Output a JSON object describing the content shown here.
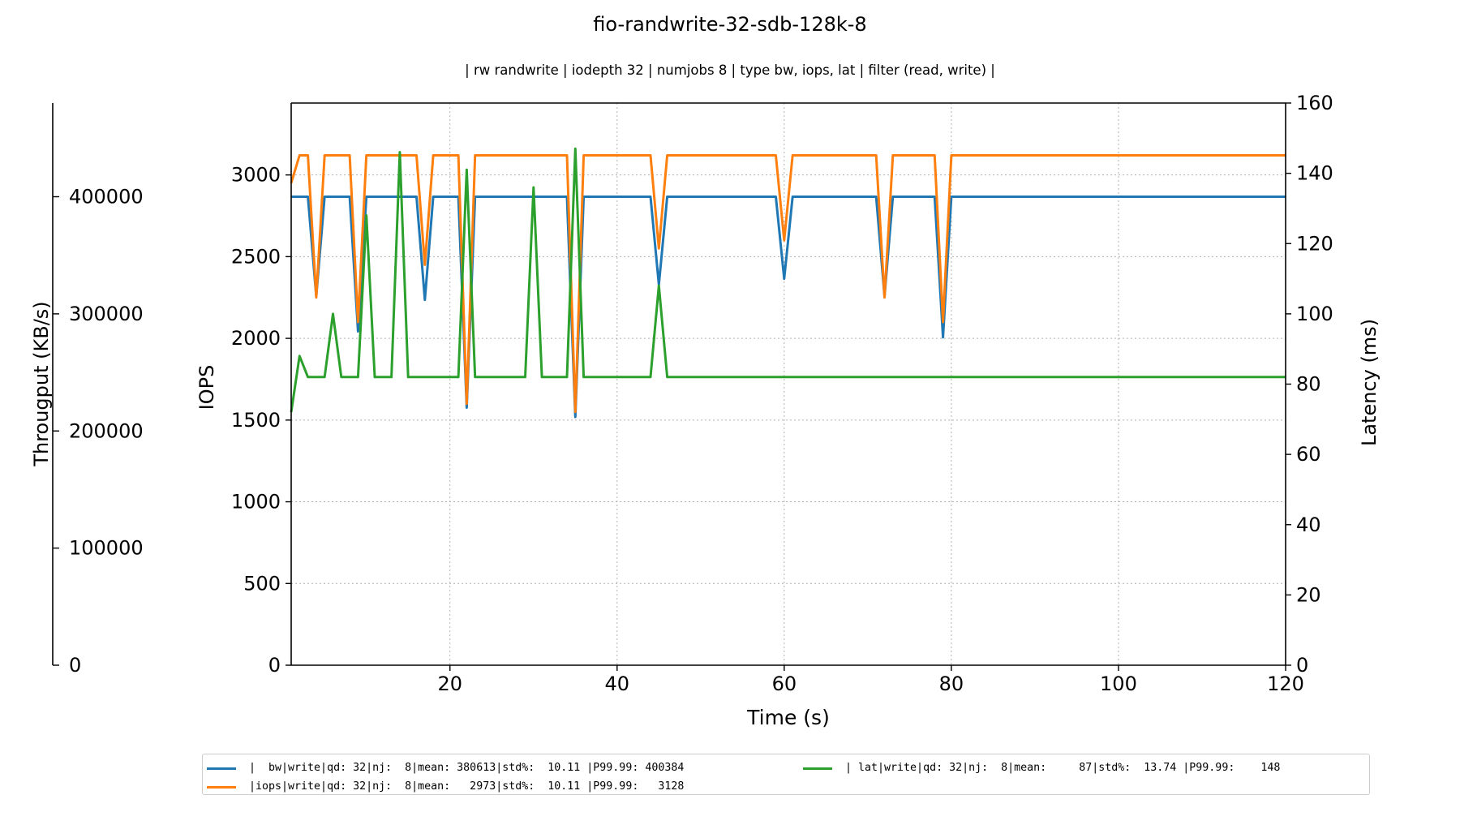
{
  "chart_data": {
    "type": "line",
    "title": "fio-randwrite-32-sdb-128k-8",
    "subtitle": "| rw randwrite | iodepth 32 | numjobs 8 | type bw, iops, lat | filter (read, write) |",
    "xlabel": "Time (s)",
    "ylabel_iops": "IOPS",
    "ylabel_bw": "Througput (KB/s)",
    "ylabel_lat": "Latency (ms)",
    "xlim": [
      1,
      120
    ],
    "ylim_iops": [
      0,
      3440
    ],
    "ylim_bw": [
      0,
      480000
    ],
    "ylim_lat": [
      0,
      160
    ],
    "xticks": [
      20,
      40,
      60,
      80,
      100,
      120
    ],
    "yticks_iops": [
      0,
      500,
      1000,
      1500,
      2000,
      2500,
      3000
    ],
    "yticks_bw": [
      0,
      100000,
      200000,
      300000,
      400000
    ],
    "yticks_lat": [
      0,
      20,
      40,
      60,
      80,
      100,
      120,
      140,
      160
    ],
    "grid": true,
    "legend_placement": "bottom",
    "series": [
      {
        "name": "|  bw|write|qd: 32|nj:  8|mean: 380613|std%:  10.11 |P99.99: 400384",
        "axis": "bw",
        "color": "#1f77b4",
        "x": [
          1,
          2,
          3,
          4,
          5,
          6,
          7,
          8,
          9,
          10,
          11,
          12,
          13,
          14,
          15,
          16,
          17,
          18,
          19,
          20,
          21,
          22,
          23,
          24,
          25,
          26,
          27,
          28,
          29,
          30,
          31,
          32,
          33,
          34,
          35,
          36,
          37,
          38,
          39,
          40,
          41,
          42,
          43,
          44,
          45,
          46,
          47,
          48,
          49,
          50,
          51,
          52,
          53,
          54,
          55,
          56,
          57,
          58,
          59,
          60,
          61,
          62,
          63,
          64,
          65,
          66,
          67,
          68,
          69,
          70,
          71,
          72,
          73,
          74,
          75,
          76,
          77,
          78,
          79,
          80,
          81,
          82,
          83,
          84,
          85,
          86,
          87,
          88,
          89,
          90,
          91,
          92,
          93,
          94,
          95,
          96,
          97,
          98,
          99,
          100,
          101,
          102,
          103,
          104,
          105,
          106,
          107,
          108,
          109,
          110,
          111,
          112,
          113,
          114,
          115,
          116,
          117,
          118,
          119,
          120
        ],
        "values": [
          400000,
          400000,
          400000,
          315000,
          400000,
          400000,
          400000,
          400000,
          285000,
          400000,
          400000,
          400000,
          400000,
          400000,
          400000,
          400000,
          312000,
          400000,
          400000,
          400000,
          400000,
          220000,
          400000,
          400000,
          400000,
          400000,
          400000,
          400000,
          400000,
          400000,
          400000,
          400000,
          400000,
          400000,
          212000,
          400000,
          400000,
          400000,
          400000,
          400000,
          400000,
          400000,
          400000,
          400000,
          325000,
          400000,
          400000,
          400000,
          400000,
          400000,
          400000,
          400000,
          400000,
          400000,
          400000,
          400000,
          400000,
          400000,
          400000,
          330000,
          400000,
          400000,
          400000,
          400000,
          400000,
          400000,
          400000,
          400000,
          400000,
          400000,
          400000,
          315000,
          400000,
          400000,
          400000,
          400000,
          400000,
          400000,
          280000,
          400000,
          400000,
          400000,
          400000,
          400000,
          400000,
          400000,
          400000,
          400000,
          400000,
          400000,
          400000,
          400000,
          400000,
          400000,
          400000,
          400000,
          400000,
          400000,
          400000,
          400000,
          400000,
          400000,
          400000,
          400000,
          400000,
          400000,
          400000,
          400000,
          400000,
          400000,
          400000,
          400000,
          400000,
          400000,
          400000,
          400000,
          400000,
          400000,
          400000,
          400000
        ]
      },
      {
        "name": "|iops|write|qd: 32|nj:  8|mean:   2973|std%:  10.11 |P99.99:   3128",
        "axis": "iops",
        "color": "#ff7f0e",
        "x": [
          1,
          2,
          3,
          4,
          5,
          6,
          7,
          8,
          9,
          10,
          11,
          12,
          13,
          14,
          15,
          16,
          17,
          18,
          19,
          20,
          21,
          22,
          23,
          24,
          25,
          26,
          27,
          28,
          29,
          30,
          31,
          32,
          33,
          34,
          35,
          36,
          37,
          38,
          39,
          40,
          41,
          42,
          43,
          44,
          45,
          46,
          47,
          48,
          49,
          50,
          51,
          52,
          53,
          54,
          55,
          56,
          57,
          58,
          59,
          60,
          61,
          62,
          63,
          64,
          65,
          66,
          67,
          68,
          69,
          70,
          71,
          72,
          73,
          74,
          75,
          76,
          77,
          78,
          79,
          80,
          81,
          82,
          83,
          84,
          85,
          86,
          87,
          88,
          89,
          90,
          91,
          92,
          93,
          94,
          95,
          96,
          97,
          98,
          99,
          100,
          101,
          102,
          103,
          104,
          105,
          106,
          107,
          108,
          109,
          110,
          111,
          112,
          113,
          114,
          115,
          116,
          117,
          118,
          119,
          120
        ],
        "values": [
          2950,
          3120,
          3120,
          2250,
          3120,
          3120,
          3120,
          3120,
          2100,
          3120,
          3120,
          3120,
          3120,
          3120,
          3120,
          3120,
          2450,
          3120,
          3120,
          3120,
          3120,
          1600,
          3120,
          3120,
          3120,
          3120,
          3120,
          3120,
          3120,
          3120,
          3120,
          3120,
          3120,
          3120,
          1550,
          3120,
          3120,
          3120,
          3120,
          3120,
          3120,
          3120,
          3120,
          3120,
          2550,
          3120,
          3120,
          3120,
          3120,
          3120,
          3120,
          3120,
          3120,
          3120,
          3120,
          3120,
          3120,
          3120,
          3120,
          2600,
          3120,
          3120,
          3120,
          3120,
          3120,
          3120,
          3120,
          3120,
          3120,
          3120,
          3120,
          2250,
          3120,
          3120,
          3120,
          3120,
          3120,
          3120,
          2100,
          3120,
          3120,
          3120,
          3120,
          3120,
          3120,
          3120,
          3120,
          3120,
          3120,
          3120,
          3120,
          3120,
          3120,
          3120,
          3120,
          3120,
          3120,
          3120,
          3120,
          3120,
          3120,
          3120,
          3120,
          3120,
          3120,
          3120,
          3120,
          3120,
          3120,
          3120,
          3120,
          3120,
          3120,
          3120,
          3120,
          3120,
          3120,
          3120,
          3120,
          3120
        ]
      },
      {
        "name": "| lat|write|qd: 32|nj:  8|mean:     87|std%:  13.74 |P99.99:    148",
        "axis": "lat",
        "color": "#2ca02c",
        "x": [
          1,
          2,
          3,
          4,
          5,
          6,
          7,
          8,
          9,
          10,
          11,
          12,
          13,
          14,
          15,
          16,
          17,
          18,
          19,
          20,
          21,
          22,
          23,
          24,
          25,
          26,
          27,
          28,
          29,
          30,
          31,
          32,
          33,
          34,
          35,
          36,
          37,
          38,
          39,
          40,
          41,
          42,
          43,
          44,
          45,
          46,
          47,
          48,
          49,
          50,
          51,
          52,
          53,
          54,
          55,
          56,
          57,
          58,
          59,
          60,
          61,
          62,
          63,
          64,
          65,
          66,
          67,
          68,
          69,
          70,
          71,
          72,
          73,
          74,
          75,
          76,
          77,
          78,
          79,
          80,
          81,
          82,
          83,
          84,
          85,
          86,
          87,
          88,
          89,
          90,
          91,
          92,
          93,
          94,
          95,
          96,
          97,
          98,
          99,
          100,
          101,
          102,
          103,
          104,
          105,
          106,
          107,
          108,
          109,
          110,
          111,
          112,
          113,
          114,
          115,
          116,
          117,
          118,
          119,
          120
        ],
        "values": [
          72,
          88,
          82,
          82,
          82,
          100,
          82,
          82,
          82,
          128,
          82,
          82,
          82,
          146,
          82,
          82,
          82,
          82,
          82,
          82,
          82,
          141,
          82,
          82,
          82,
          82,
          82,
          82,
          82,
          136,
          82,
          82,
          82,
          82,
          147,
          82,
          82,
          82,
          82,
          82,
          82,
          82,
          82,
          82,
          108,
          82,
          82,
          82,
          82,
          82,
          82,
          82,
          82,
          82,
          82,
          82,
          82,
          82,
          82,
          82,
          82,
          82,
          82,
          82,
          82,
          82,
          82,
          82,
          82,
          82,
          82,
          82,
          82,
          82,
          82,
          82,
          82,
          82,
          82,
          82,
          82,
          82,
          82,
          82,
          82,
          82,
          82,
          82,
          82,
          82,
          82,
          82,
          82,
          82,
          82,
          82,
          82,
          82,
          82,
          82,
          82,
          82,
          82,
          82,
          82,
          82,
          82,
          82,
          82,
          82,
          82,
          82,
          82,
          82,
          82,
          82,
          82,
          82,
          82,
          82
        ]
      }
    ]
  }
}
